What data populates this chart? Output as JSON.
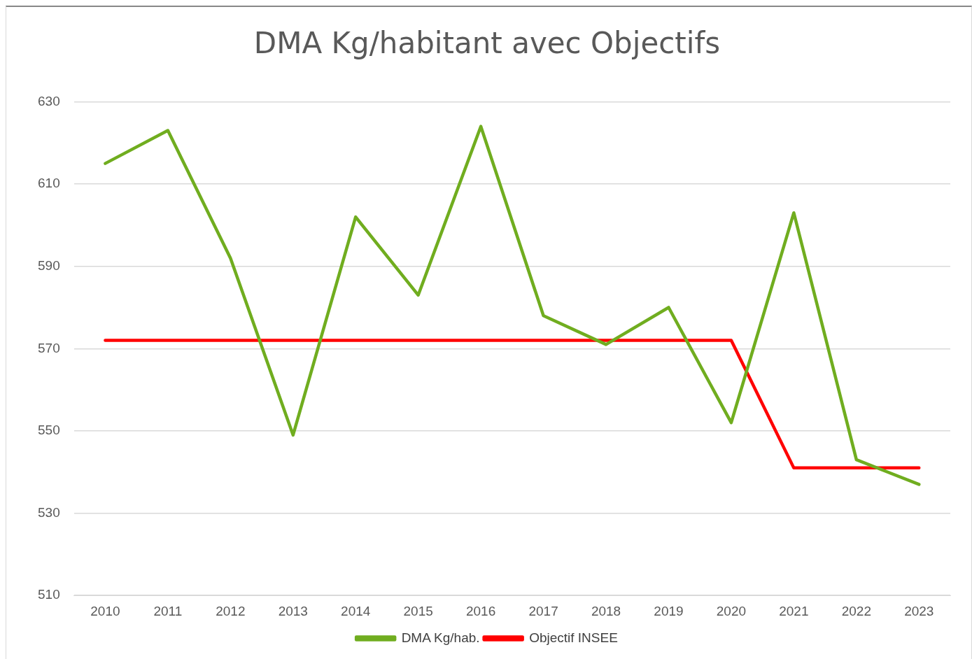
{
  "chart_data": {
    "type": "line",
    "title": "DMA Kg/habitant avec Objectifs",
    "categories": [
      "2010",
      "2011",
      "2012",
      "2013",
      "2014",
      "2015",
      "2016",
      "2017",
      "2018",
      "2019",
      "2020",
      "2021",
      "2022",
      "2023"
    ],
    "series": [
      {
        "name": "DMA Kg/hab.",
        "color": "#70ad1f",
        "values": [
          615,
          623,
          592,
          549,
          602,
          583,
          624,
          578,
          571,
          580,
          552,
          603,
          543,
          537
        ]
      },
      {
        "name": "Objectif INSEE",
        "color": "#ff0000",
        "values": [
          572,
          572,
          572,
          572,
          572,
          572,
          572,
          572,
          572,
          572,
          572,
          541,
          541,
          541
        ]
      }
    ],
    "ylim": [
      510,
      630
    ],
    "yticks": [
      510,
      530,
      550,
      570,
      590,
      610,
      630
    ],
    "grid": "y",
    "legend": "bottom",
    "marker": "none",
    "line_style": "solid"
  }
}
